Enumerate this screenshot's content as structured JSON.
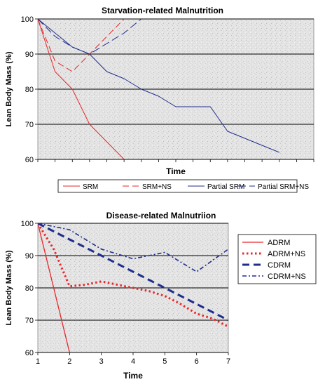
{
  "colors": {
    "red": "#e8262a",
    "blue": "#1f2d8c",
    "grid": "#000000",
    "plot_bg": "#e4e4e4"
  },
  "chart_data": [
    {
      "type": "line",
      "title": "Starvation-related Malnutrition",
      "xlabel": "Time",
      "ylabel": "Lean Body Mass (%)",
      "ylim": [
        60,
        100
      ],
      "yticks": [
        60,
        70,
        80,
        90,
        100
      ],
      "xlim": [
        0,
        16
      ],
      "x_tick_labels": false,
      "grid": true,
      "legend_position": "bottom",
      "series": [
        {
          "name": "SRM",
          "color": "#e8262a",
          "dash": "solid",
          "width": 1,
          "x": [
            0,
            1,
            2,
            3,
            4,
            5
          ],
          "y": [
            100,
            85,
            80,
            70,
            65,
            60
          ]
        },
        {
          "name": "SRM+NS",
          "color": "#e8262a",
          "dash": "dash",
          "width": 1,
          "x": [
            0,
            1,
            2,
            3,
            4,
            5
          ],
          "y": [
            100,
            88,
            85,
            90,
            95,
            100
          ]
        },
        {
          "name": "Partial SRM",
          "color": "#1f2d8c",
          "dash": "solid",
          "width": 1,
          "x": [
            0,
            1,
            2,
            3,
            4,
            5,
            6,
            7,
            8,
            9,
            10,
            11,
            12,
            13,
            14
          ],
          "y": [
            100,
            96,
            92,
            90,
            85,
            83,
            80,
            78,
            75,
            75,
            75,
            68,
            66,
            64,
            62
          ]
        },
        {
          "name": "Partial SRM+NS",
          "color": "#1f2d8c",
          "dash": "longdash",
          "width": 1,
          "x": [
            0,
            1,
            2,
            3,
            4,
            5,
            6,
            7
          ],
          "y": [
            100,
            95,
            92,
            90,
            93,
            96,
            100,
            104
          ]
        }
      ]
    },
    {
      "type": "line",
      "title": "Disease-related Malnutriion",
      "xlabel": "Time",
      "ylabel": "Lean Body Mass (%)",
      "ylim": [
        60,
        100
      ],
      "yticks": [
        60,
        70,
        80,
        90,
        100
      ],
      "xlim": [
        1,
        7
      ],
      "x_tick_labels": true,
      "categories": [
        "1",
        "2",
        "3",
        "4",
        "5",
        "6",
        "7"
      ],
      "grid": true,
      "legend_position": "right",
      "series": [
        {
          "name": "ADRM",
          "color": "#e8262a",
          "dash": "solid",
          "width": 1.3,
          "x": [
            1,
            2
          ],
          "y": [
            100,
            60
          ]
        },
        {
          "name": "ADRM+NS",
          "color": "#e8262a",
          "dash": "dot",
          "width": 3,
          "x": [
            1,
            1.5,
            2,
            2.5,
            3,
            3.5,
            4,
            4.5,
            5,
            5.5,
            6,
            6.5,
            7
          ],
          "y": [
            100,
            92,
            80.5,
            81,
            82,
            81,
            80,
            79,
            77.5,
            75,
            72,
            70.5,
            68
          ]
        },
        {
          "name": "CDRM",
          "color": "#1f2d8c",
          "dash": "bigdash",
          "width": 3,
          "x": [
            1,
            2,
            3,
            4,
            5,
            6,
            7
          ],
          "y": [
            100,
            95,
            90,
            85,
            80,
            75,
            70
          ]
        },
        {
          "name": "CDRM+NS",
          "color": "#1f2d8c",
          "dash": "dashdot",
          "width": 1.6,
          "x": [
            1,
            2,
            3,
            4,
            5,
            6,
            7
          ],
          "y": [
            100,
            98,
            92,
            89,
            91,
            85,
            92
          ]
        }
      ]
    }
  ]
}
